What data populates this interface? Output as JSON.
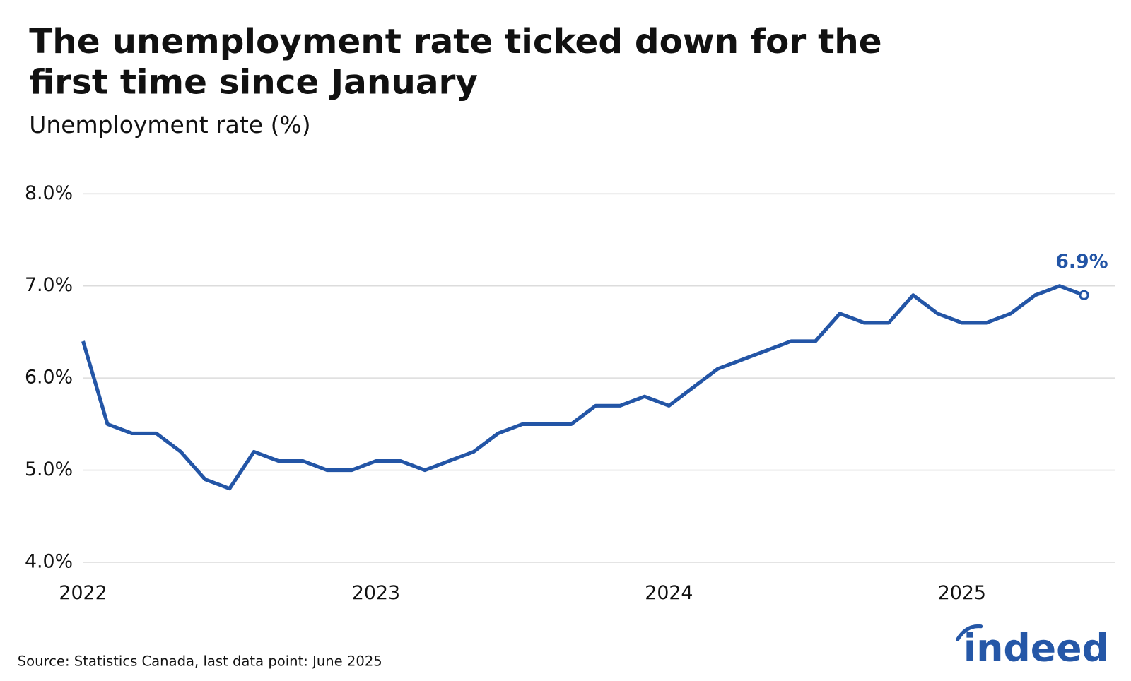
{
  "chart_data": {
    "type": "line",
    "title": [
      "The unemployment rate ticked down for the",
      "first time since January"
    ],
    "subtitle": "Unemployment rate (%)",
    "source": "Source: Statistics Canada, last data point: June 2025",
    "logo": "indeed",
    "x": [
      "2022-01",
      "2022-02",
      "2022-03",
      "2022-04",
      "2022-05",
      "2022-06",
      "2022-07",
      "2022-08",
      "2022-09",
      "2022-10",
      "2022-11",
      "2022-12",
      "2023-01",
      "2023-02",
      "2023-03",
      "2023-04",
      "2023-05",
      "2023-06",
      "2023-07",
      "2023-08",
      "2023-09",
      "2023-10",
      "2023-11",
      "2023-12",
      "2024-01",
      "2024-02",
      "2024-03",
      "2024-04",
      "2024-05",
      "2024-06",
      "2024-07",
      "2024-08",
      "2024-09",
      "2024-10",
      "2024-11",
      "2024-12",
      "2025-01",
      "2025-02",
      "2025-03",
      "2025-04",
      "2025-05",
      "2025-06"
    ],
    "series": [
      {
        "name": "Unemployment rate",
        "color": "#2355a6",
        "values": [
          6.4,
          5.5,
          5.4,
          5.4,
          5.2,
          4.9,
          4.8,
          5.2,
          5.1,
          5.1,
          5.0,
          5.0,
          5.1,
          5.1,
          5.0,
          5.1,
          5.2,
          5.4,
          5.5,
          5.5,
          5.5,
          5.7,
          5.7,
          5.8,
          5.7,
          5.9,
          6.1,
          6.2,
          6.3,
          6.4,
          6.4,
          6.7,
          6.6,
          6.6,
          6.9,
          6.7,
          6.6,
          6.6,
          6.7,
          6.9,
          7.0,
          6.9
        ],
        "value_labels": [
          null,
          null,
          null,
          null,
          null,
          null,
          null,
          null,
          null,
          null,
          null,
          null,
          null,
          null,
          null,
          null,
          null,
          null,
          null,
          null,
          null,
          null,
          null,
          null,
          null,
          null,
          null,
          null,
          null,
          null,
          null,
          null,
          null,
          null,
          null,
          null,
          null,
          null,
          null,
          null,
          null,
          "6.9%"
        ]
      }
    ],
    "xticks": [
      "2022",
      "2023",
      "2024",
      "2025"
    ],
    "ylim": [
      4,
      8
    ],
    "yticks": [
      {
        "value": 4,
        "label": "4.0%"
      },
      {
        "value": 5,
        "label": "5.0%"
      },
      {
        "value": 6,
        "label": "6.0%"
      },
      {
        "value": 7,
        "label": "7.0%"
      },
      {
        "value": 8,
        "label": "8.0%"
      }
    ],
    "grid": true
  }
}
